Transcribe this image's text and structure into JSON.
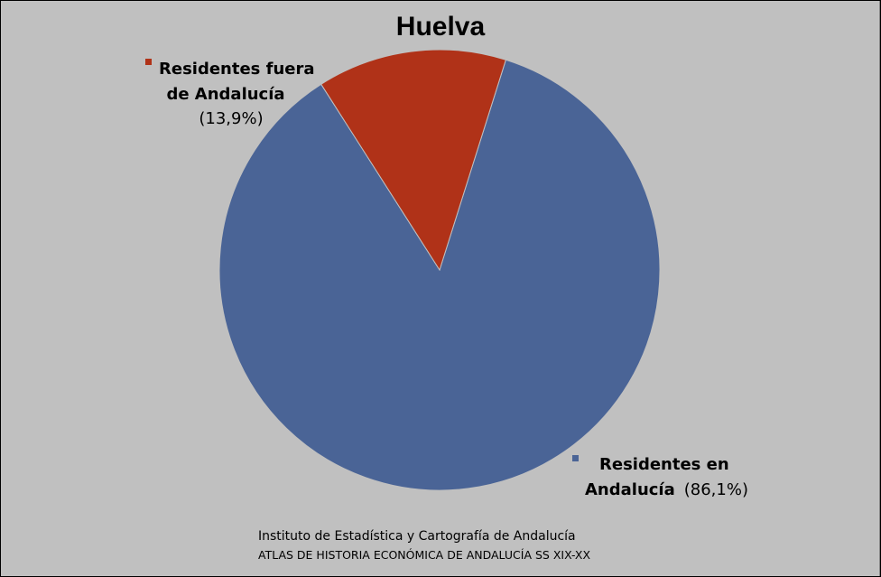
{
  "chart_data": {
    "type": "pie",
    "title": "Huelva",
    "slices": [
      {
        "name_line1": "Residentes en",
        "name_line2": "Andalucía",
        "label": "Residentes en Andalucía",
        "value": 86.1,
        "percent_text": "(86,1%)",
        "color": "#4a6496"
      },
      {
        "name_line1": "Residentes fuera",
        "name_line2": "de Andalucía",
        "label": "Residentes fuera de Andalucía",
        "value": 13.9,
        "percent_text": "(13,9%)",
        "color": "#b03218"
      }
    ]
  },
  "source": {
    "line1": "Instituto de Estadística y Cartografía de Andalucía",
    "line2": "ATLAS DE HISTORIA ECONÓMICA DE ANDALUCÍA SS XIX-XX"
  },
  "colors": {
    "background": "#c0c0c0",
    "frame": "#000000"
  }
}
